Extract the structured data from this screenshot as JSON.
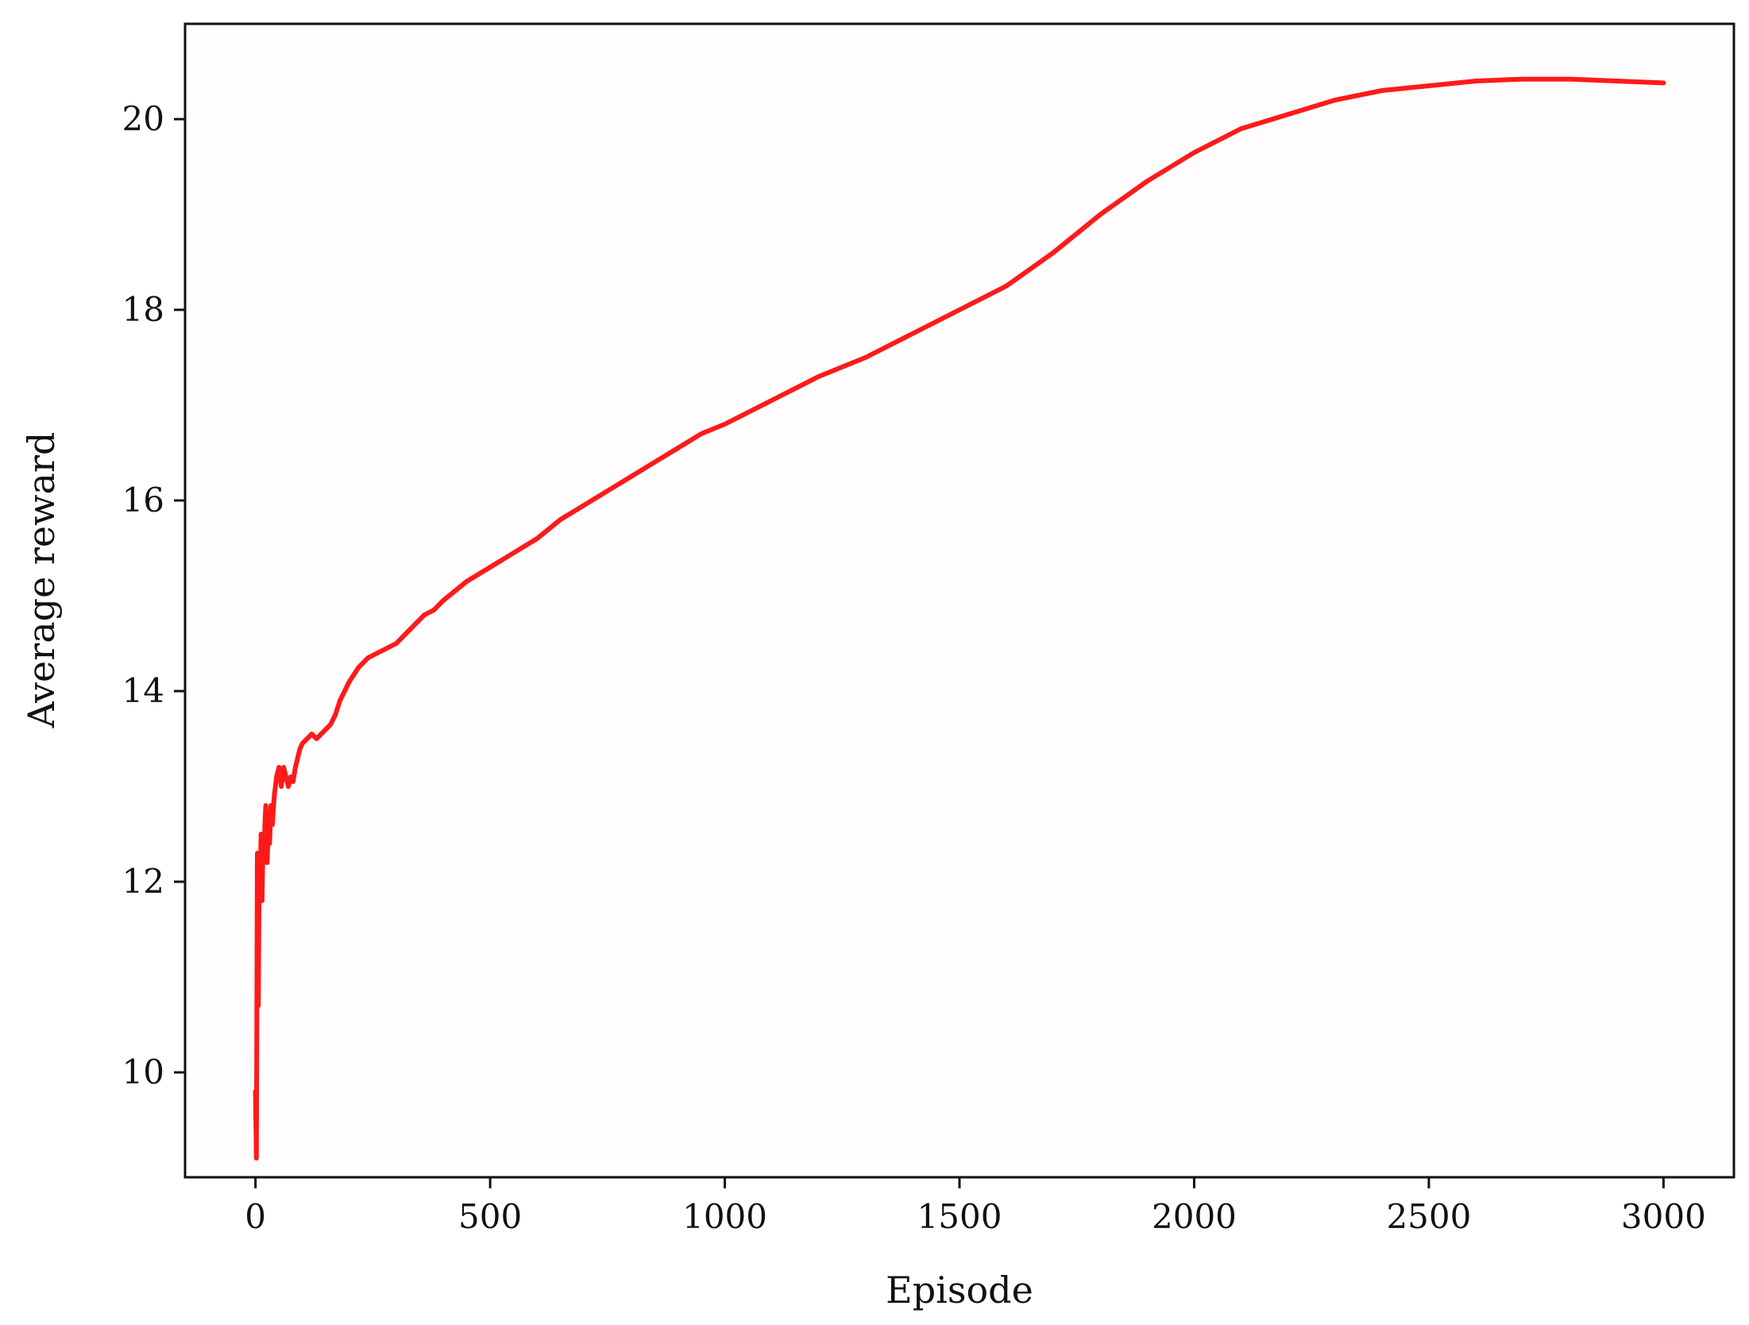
{
  "chart_data": {
    "type": "line",
    "title": "",
    "xlabel": "Episode",
    "ylabel": "Average reward",
    "xlim": [
      -150,
      3150
    ],
    "ylim": [
      8.9,
      21.0
    ],
    "x_ticks": [
      0,
      500,
      1000,
      1500,
      2000,
      2500,
      3000
    ],
    "y_ticks": [
      10,
      12,
      14,
      16,
      18,
      20
    ],
    "grid": false,
    "legend": "none",
    "line_color": "#ff1a1a",
    "series": [
      {
        "x": [
          0,
          2,
          4,
          6,
          8,
          10,
          12,
          14,
          16,
          18,
          20,
          22,
          25,
          28,
          30,
          33,
          36,
          40,
          45,
          50,
          55,
          60,
          65,
          70,
          75,
          80,
          85,
          90,
          95,
          100,
          110,
          120,
          130,
          140,
          150,
          160,
          170,
          180,
          190,
          200,
          220,
          240,
          260,
          280,
          300,
          320,
          340,
          360,
          380,
          400,
          450,
          500,
          550,
          600,
          650,
          700,
          750,
          800,
          850,
          900,
          950,
          1000,
          1100,
          1200,
          1300,
          1400,
          1500,
          1600,
          1700,
          1800,
          1900,
          2000,
          2100,
          2200,
          2300,
          2400,
          2500,
          2600,
          2700,
          2800,
          2900,
          3000
        ],
        "y": [
          9.8,
          9.1,
          12.3,
          10.7,
          12.2,
          11.9,
          12.5,
          11.8,
          12.4,
          12.2,
          12.6,
          12.8,
          12.2,
          12.7,
          12.4,
          12.8,
          12.6,
          12.9,
          13.1,
          13.2,
          13.0,
          13.2,
          13.1,
          13.0,
          13.1,
          13.05,
          13.2,
          13.3,
          13.4,
          13.45,
          13.5,
          13.55,
          13.5,
          13.55,
          13.6,
          13.65,
          13.75,
          13.9,
          14.0,
          14.1,
          14.25,
          14.35,
          14.4,
          14.45,
          14.5,
          14.6,
          14.7,
          14.8,
          14.85,
          14.95,
          15.15,
          15.3,
          15.45,
          15.6,
          15.8,
          15.95,
          16.1,
          16.25,
          16.4,
          16.55,
          16.7,
          16.8,
          17.05,
          17.3,
          17.5,
          17.75,
          18.0,
          18.25,
          18.6,
          19.0,
          19.35,
          19.65,
          19.9,
          20.05,
          20.2,
          20.3,
          20.35,
          20.4,
          20.42,
          20.42,
          20.4,
          20.38
        ]
      }
    ]
  }
}
